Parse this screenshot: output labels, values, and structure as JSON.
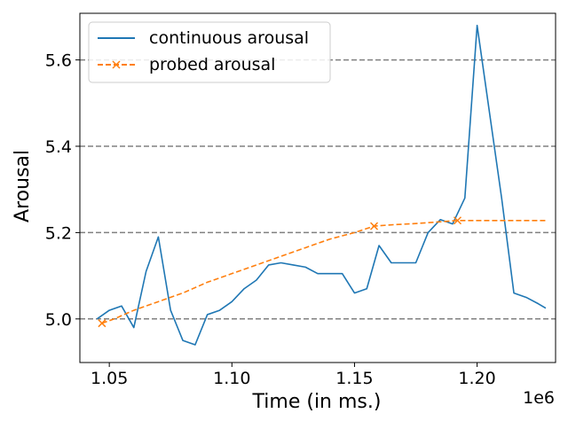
{
  "chart_data": {
    "type": "line",
    "title": "",
    "xlabel": "Time (in ms.)",
    "ylabel": "Arousal",
    "x_offset_label": "1e6",
    "xlim": [
      1.038,
      1.232
    ],
    "ylim": [
      4.899,
      5.708
    ],
    "x_ticks": [
      1.05,
      1.1,
      1.15,
      1.2
    ],
    "x_tick_labels": [
      "1.05",
      "1.10",
      "1.15",
      "1.20"
    ],
    "y_ticks": [
      5.0,
      5.2,
      5.4,
      5.6
    ],
    "y_tick_labels": [
      "5.0",
      "5.2",
      "5.4",
      "5.6"
    ],
    "grid": "horizontal dashed",
    "legend_position": "top-left",
    "series": [
      {
        "name": "continuous arousal",
        "color": "#1f77b4",
        "style": "solid",
        "marker": "none",
        "x": [
          1.045,
          1.05,
          1.055,
          1.06,
          1.065,
          1.07,
          1.075,
          1.08,
          1.085,
          1.09,
          1.095,
          1.1,
          1.105,
          1.11,
          1.115,
          1.12,
          1.125,
          1.13,
          1.135,
          1.14,
          1.145,
          1.15,
          1.155,
          1.16,
          1.165,
          1.17,
          1.175,
          1.18,
          1.185,
          1.19,
          1.195,
          1.2,
          1.205,
          1.21,
          1.215,
          1.22,
          1.225,
          1.228
        ],
        "y": [
          5.0,
          5.02,
          5.03,
          4.98,
          5.11,
          5.19,
          5.02,
          4.95,
          4.94,
          5.01,
          5.02,
          5.04,
          5.07,
          5.09,
          5.125,
          5.13,
          5.125,
          5.12,
          5.105,
          5.105,
          5.105,
          5.06,
          5.07,
          5.17,
          5.13,
          5.13,
          5.13,
          5.2,
          5.23,
          5.22,
          5.28,
          5.68,
          5.48,
          5.28,
          5.06,
          5.05,
          5.035,
          5.025
        ]
      },
      {
        "name": "probed arousal",
        "color": "#ff7f0e",
        "style": "dashed",
        "marker": "x",
        "x": [
          1.047,
          1.158,
          1.192
        ],
        "y": [
          4.99,
          5.215,
          5.228
        ],
        "line_x": [
          1.047,
          1.052,
          1.06,
          1.07,
          1.08,
          1.09,
          1.1,
          1.11,
          1.12,
          1.13,
          1.14,
          1.15,
          1.158,
          1.165,
          1.175,
          1.185,
          1.192,
          1.2,
          1.21,
          1.22,
          1.228
        ],
        "line_y": [
          4.99,
          5.0,
          5.02,
          5.04,
          5.06,
          5.085,
          5.105,
          5.125,
          5.145,
          5.165,
          5.185,
          5.2,
          5.215,
          5.218,
          5.221,
          5.225,
          5.228,
          5.228,
          5.228,
          5.228,
          5.228
        ]
      }
    ]
  }
}
